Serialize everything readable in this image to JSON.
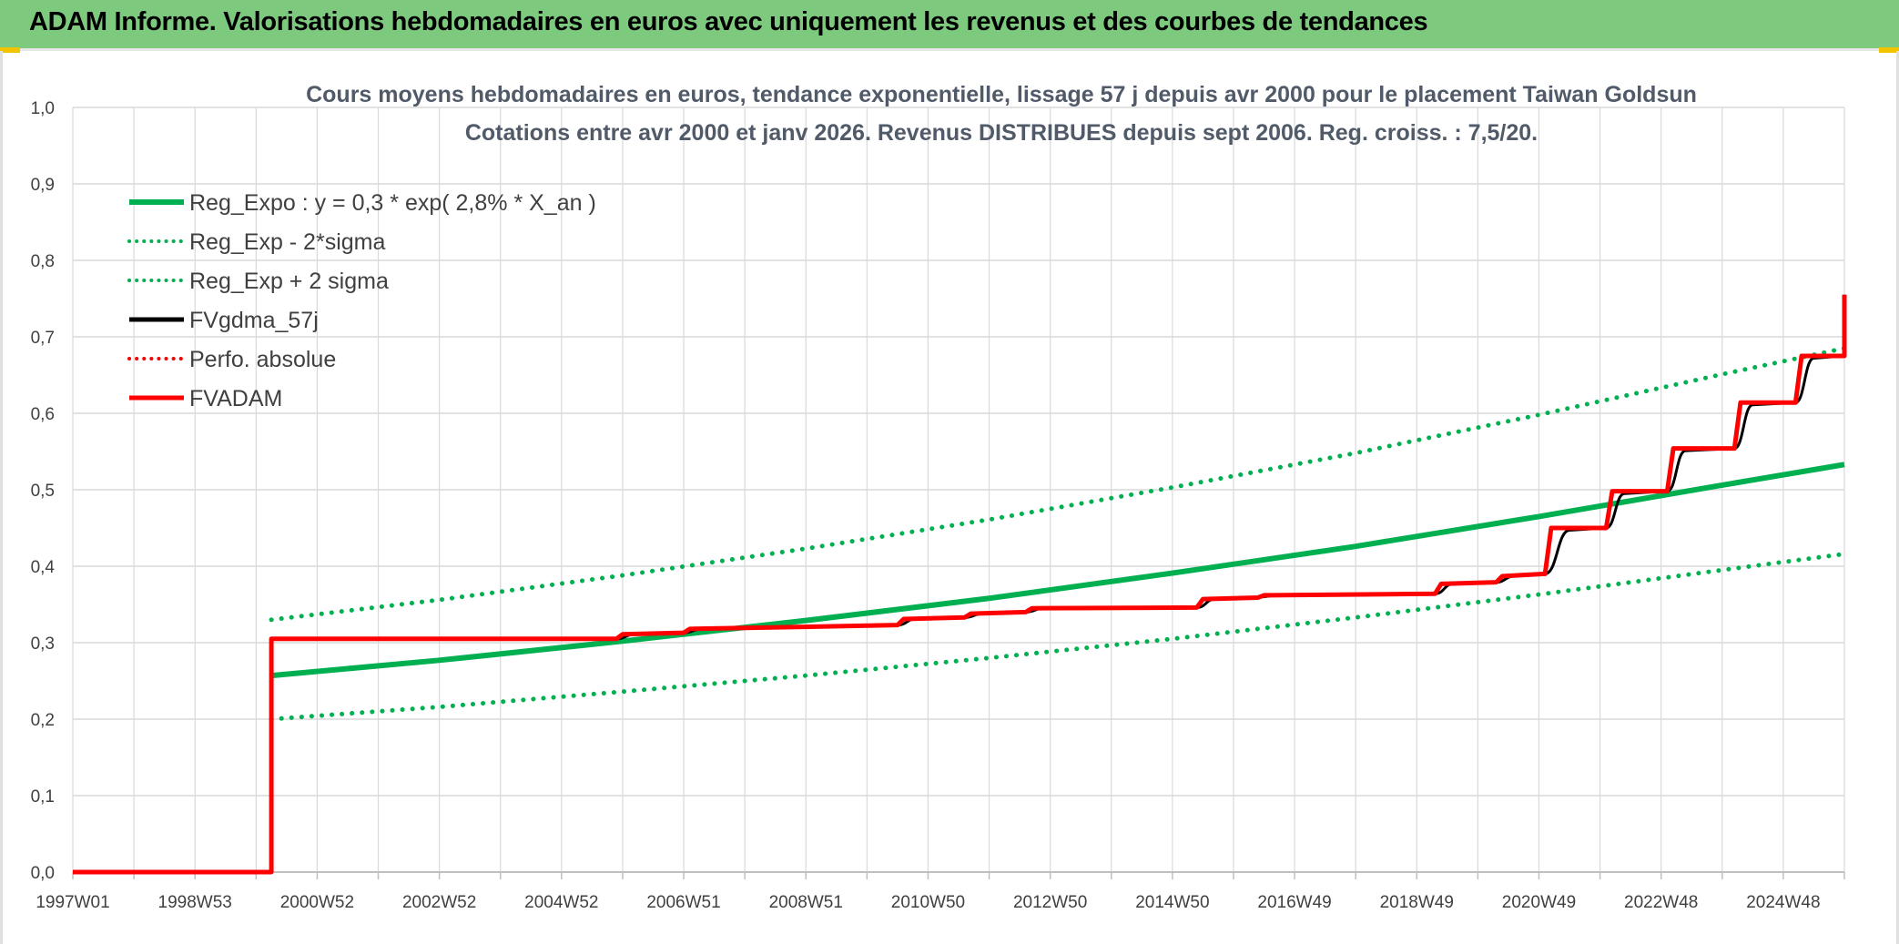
{
  "header": {
    "title": "ADAM Informe. Valorisations hebdomadaires en euros avec uniquement les revenus et des courbes de tendances"
  },
  "colors": {
    "header_bg": "#7dc97e",
    "green": "#00b050",
    "red": "#ff0000",
    "black": "#000000",
    "grid": "#d9d9d9"
  },
  "chart_data": {
    "type": "line",
    "title": "Cours moyens hebdomadaires en euros, tendance exponentielle, lissage 57 j depuis avr 2000 pour le placement Taiwan Goldsun",
    "subtitle": "Cotations entre avr 2000 et janv 2026. Revenus DISTRIBUES depuis sept 2006. Reg. croiss. : 7,5/20.",
    "xlabel": "",
    "ylabel": "",
    "ylim": [
      0,
      1.0
    ],
    "xlim": [
      1997.0,
      2026.0
    ],
    "grid": true,
    "legend_position": "top-left",
    "y_ticks": [
      "0,0",
      "0,1",
      "0,2",
      "0,3",
      "0,4",
      "0,5",
      "0,6",
      "0,7",
      "0,8",
      "0,9",
      "1,0"
    ],
    "x_ticks": [
      {
        "x": 1997.0,
        "label": "1997W01"
      },
      {
        "x": 1999.0,
        "label": "1998W53"
      },
      {
        "x": 2001.0,
        "label": "2000W52"
      },
      {
        "x": 2003.0,
        "label": "2002W52"
      },
      {
        "x": 2005.0,
        "label": "2004W52"
      },
      {
        "x": 2007.0,
        "label": "2006W51"
      },
      {
        "x": 2009.0,
        "label": "2008W51"
      },
      {
        "x": 2011.0,
        "label": "2010W50"
      },
      {
        "x": 2013.0,
        "label": "2012W50"
      },
      {
        "x": 2015.0,
        "label": "2014W50"
      },
      {
        "x": 2017.0,
        "label": "2016W49"
      },
      {
        "x": 2019.0,
        "label": "2018W49"
      },
      {
        "x": 2021.0,
        "label": "2020W49"
      },
      {
        "x": 2023.0,
        "label": "2022W48"
      },
      {
        "x": 2025.0,
        "label": "2024W48"
      }
    ],
    "series": [
      {
        "name": "Reg_Expo : y = 0,3 * exp( 2,8% *  X_an )",
        "color": "#00b050",
        "style": "solid",
        "points": [
          [
            2000.25,
            0.257
          ],
          [
            2003.0,
            0.277
          ],
          [
            2006.0,
            0.302
          ],
          [
            2009.0,
            0.329
          ],
          [
            2012.0,
            0.358
          ],
          [
            2015.0,
            0.391
          ],
          [
            2018.0,
            0.426
          ],
          [
            2021.0,
            0.465
          ],
          [
            2024.0,
            0.506
          ],
          [
            2026.0,
            0.533
          ]
        ]
      },
      {
        "name": "Reg_Exp - 2*sigma",
        "color": "#00b050",
        "style": "dotted",
        "points": [
          [
            2000.25,
            0.2
          ],
          [
            2003.0,
            0.216
          ],
          [
            2006.0,
            0.236
          ],
          [
            2009.0,
            0.257
          ],
          [
            2012.0,
            0.28
          ],
          [
            2015.0,
            0.305
          ],
          [
            2018.0,
            0.333
          ],
          [
            2021.0,
            0.363
          ],
          [
            2024.0,
            0.395
          ],
          [
            2026.0,
            0.416
          ]
        ]
      },
      {
        "name": "Reg_Exp + 2 sigma",
        "color": "#00b050",
        "style": "dotted",
        "points": [
          [
            2000.25,
            0.33
          ],
          [
            2003.0,
            0.356
          ],
          [
            2006.0,
            0.388
          ],
          [
            2009.0,
            0.423
          ],
          [
            2012.0,
            0.461
          ],
          [
            2015.0,
            0.503
          ],
          [
            2018.0,
            0.548
          ],
          [
            2021.0,
            0.598
          ],
          [
            2024.0,
            0.651
          ],
          [
            2026.0,
            0.685
          ]
        ]
      },
      {
        "name": "FVgdma_57j",
        "color": "#000000",
        "style": "solid",
        "points": [
          [
            1997.0,
            0.0
          ],
          [
            2000.25,
            0.0
          ],
          [
            2000.25,
            0.305
          ],
          [
            2005.9,
            0.305
          ],
          [
            2006.2,
            0.311
          ],
          [
            2007.0,
            0.313
          ],
          [
            2007.3,
            0.318
          ],
          [
            2010.5,
            0.323
          ],
          [
            2010.8,
            0.331
          ],
          [
            2011.6,
            0.333
          ],
          [
            2011.9,
            0.338
          ],
          [
            2012.6,
            0.34
          ],
          [
            2012.9,
            0.345
          ],
          [
            2015.4,
            0.346
          ],
          [
            2015.7,
            0.357
          ],
          [
            2016.4,
            0.359
          ],
          [
            2016.7,
            0.362
          ],
          [
            2019.3,
            0.364
          ],
          [
            2019.6,
            0.377
          ],
          [
            2020.3,
            0.379
          ],
          [
            2020.6,
            0.387
          ],
          [
            2021.1,
            0.39
          ],
          [
            2021.5,
            0.447
          ],
          [
            2022.1,
            0.45
          ],
          [
            2022.4,
            0.495
          ],
          [
            2023.1,
            0.498
          ],
          [
            2023.4,
            0.551
          ],
          [
            2024.2,
            0.554
          ],
          [
            2024.5,
            0.611
          ],
          [
            2025.2,
            0.614
          ],
          [
            2025.5,
            0.672
          ],
          [
            2026.2,
            0.675
          ],
          [
            2026.5,
            0.752
          ],
          [
            2027.0,
            0.755
          ]
        ]
      },
      {
        "name": "Perfo. absolue",
        "color": "#ff0000",
        "style": "dotted",
        "points": []
      },
      {
        "name": "FVADAM",
        "color": "#ff0000",
        "style": "solid",
        "points": [
          [
            1997.0,
            0.0
          ],
          [
            2000.25,
            0.0
          ],
          [
            2000.25,
            0.305
          ],
          [
            2005.9,
            0.305
          ],
          [
            2006.0,
            0.311
          ],
          [
            2007.0,
            0.313
          ],
          [
            2007.1,
            0.318
          ],
          [
            2010.5,
            0.323
          ],
          [
            2010.6,
            0.331
          ],
          [
            2011.6,
            0.333
          ],
          [
            2011.7,
            0.338
          ],
          [
            2012.6,
            0.34
          ],
          [
            2012.7,
            0.345
          ],
          [
            2015.4,
            0.346
          ],
          [
            2015.5,
            0.357
          ],
          [
            2016.4,
            0.359
          ],
          [
            2016.5,
            0.362
          ],
          [
            2019.3,
            0.364
          ],
          [
            2019.4,
            0.377
          ],
          [
            2020.3,
            0.379
          ],
          [
            2020.4,
            0.387
          ],
          [
            2021.1,
            0.39
          ],
          [
            2021.2,
            0.45
          ],
          [
            2022.1,
            0.45
          ],
          [
            2022.2,
            0.498
          ],
          [
            2023.1,
            0.498
          ],
          [
            2023.2,
            0.554
          ],
          [
            2024.2,
            0.554
          ],
          [
            2024.3,
            0.614
          ],
          [
            2025.2,
            0.614
          ],
          [
            2025.3,
            0.675
          ],
          [
            2026.2,
            0.675
          ],
          [
            2026.3,
            0.755
          ],
          [
            2027.0,
            0.755
          ]
        ]
      }
    ]
  }
}
